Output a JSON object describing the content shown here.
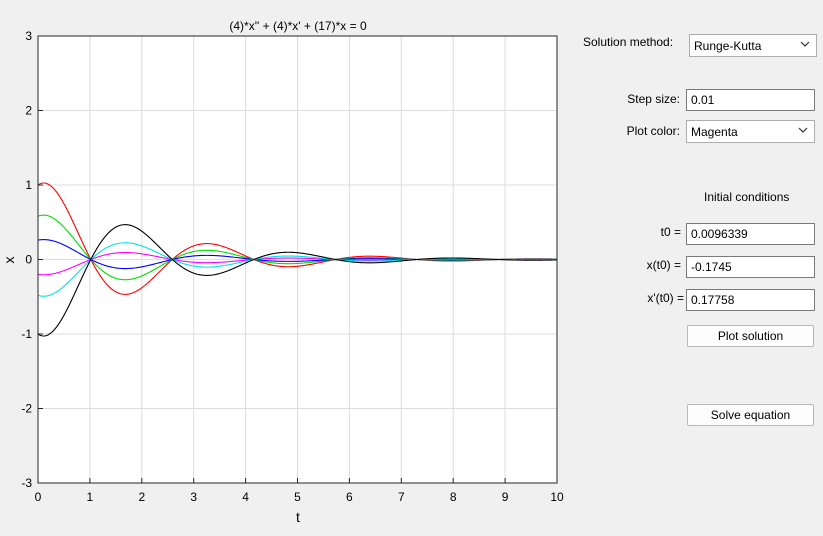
{
  "plot": {
    "title": "(4)*x'' + (4)*x' + (17)*x = 0",
    "xlabel": "t",
    "ylabel": "x",
    "xlim": [
      0,
      10
    ],
    "ylim": [
      -3,
      3
    ],
    "xticks": [
      "0",
      "1",
      "2",
      "3",
      "4",
      "5",
      "6",
      "7",
      "8",
      "9",
      "10"
    ],
    "yticks": [
      "3",
      "2",
      "1",
      "0",
      "-1",
      "-2",
      "-3"
    ],
    "grid": true
  },
  "chart_data": {
    "type": "line",
    "title": "(4)*x'' + (4)*x' + (17)*x = 0",
    "xlabel": "t",
    "ylabel": "x",
    "xlim": [
      0,
      10
    ],
    "ylim": [
      -3,
      3
    ],
    "grid": true,
    "equation": {
      "a": 4,
      "b": 4,
      "c": 17
    },
    "t_range": [
      0,
      10
    ],
    "series": [
      {
        "color": "#ff0000",
        "x0": 1.0,
        "v0": 0.5
      },
      {
        "color": "#00dd00",
        "x0": 0.58,
        "v0": 0.29
      },
      {
        "color": "#0000ff",
        "x0": 0.26,
        "v0": 0.13
      },
      {
        "color": "#ff00ff",
        "x0": -0.2,
        "v0": -0.1
      },
      {
        "color": "#00e5e5",
        "x0": -0.48,
        "v0": -0.24
      },
      {
        "color": "#000000",
        "x0": -1.0,
        "v0": -0.5
      }
    ]
  },
  "controls": {
    "solution_method_label": "Solution method:",
    "solution_method_value": "Runge-Kutta",
    "step_size_label": "Step size:",
    "step_size_value": "0.01",
    "plot_color_label": "Plot color:",
    "plot_color_value": "Magenta",
    "initial_conditions_label": "Initial conditions",
    "t0_label": "t0 =",
    "t0_value": "0.0096339",
    "xt0_label": "x(t0) =",
    "xt0_value": "-0.1745",
    "dxt0_label": "x'(t0) =",
    "dxt0_value": "0.17758",
    "plot_solution_button": "Plot solution",
    "solve_equation_button": "Solve equation"
  }
}
